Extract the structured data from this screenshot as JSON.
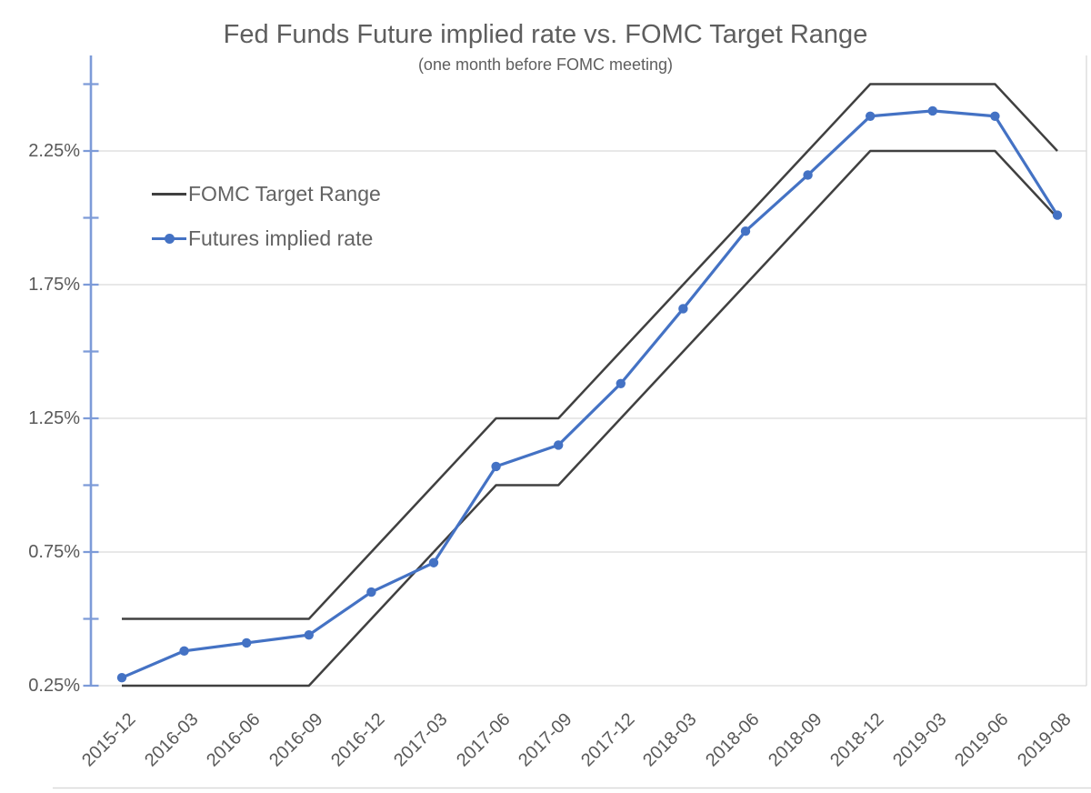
{
  "chart_data": {
    "type": "line",
    "title": "Fed Funds Future implied rate vs. FOMC Target Range",
    "subtitle": "(one month before FOMC meeting)",
    "categories": [
      "2015-12",
      "2016-03",
      "2016-06",
      "2016-09",
      "2016-12",
      "2017-03",
      "2017-06",
      "2017-09",
      "2017-12",
      "2018-03",
      "2018-06",
      "2018-09",
      "2018-12",
      "2019-03",
      "2019-06",
      "2019-08"
    ],
    "series": [
      {
        "name": "FOMC Target Range (upper bound)",
        "color": "#404040",
        "marker": false,
        "values": [
          0.5,
          0.5,
          0.5,
          0.5,
          0.75,
          1.0,
          1.25,
          1.25,
          1.5,
          1.75,
          2.0,
          2.25,
          2.5,
          2.5,
          2.5,
          2.25
        ]
      },
      {
        "name": "FOMC Target Range (lower bound)",
        "color": "#404040",
        "marker": false,
        "values": [
          0.25,
          0.25,
          0.25,
          0.25,
          0.5,
          0.75,
          1.0,
          1.0,
          1.25,
          1.5,
          1.75,
          2.0,
          2.25,
          2.25,
          2.25,
          2.0
        ]
      },
      {
        "name": "Futures implied rate",
        "color": "#4472C4",
        "marker": true,
        "values": [
          0.28,
          0.38,
          0.41,
          0.44,
          0.6,
          0.71,
          1.07,
          1.15,
          1.38,
          1.66,
          1.95,
          2.16,
          2.38,
          2.4,
          2.38,
          2.01
        ]
      }
    ],
    "legend": [
      "FOMC Target Range",
      "Futures implied rate"
    ],
    "legend_position": "upper-left-inside",
    "y_axis": {
      "tick_labels": [
        "0.25%",
        "0.75%",
        "1.25%",
        "1.75%",
        "2.25%"
      ],
      "labeled_values": [
        0.25,
        0.75,
        1.25,
        1.75,
        2.25
      ],
      "minor_tick_step": 0.25,
      "min": 0.25,
      "max": 2.5,
      "unit": "percent"
    },
    "grid": "horizontal",
    "colors": {
      "futures_blue": "#4472C4",
      "target_black": "#404040",
      "gridline_gray": "#D9D9D9",
      "axis_blue": "#7D9BD8",
      "text_gray": "#595959"
    }
  }
}
